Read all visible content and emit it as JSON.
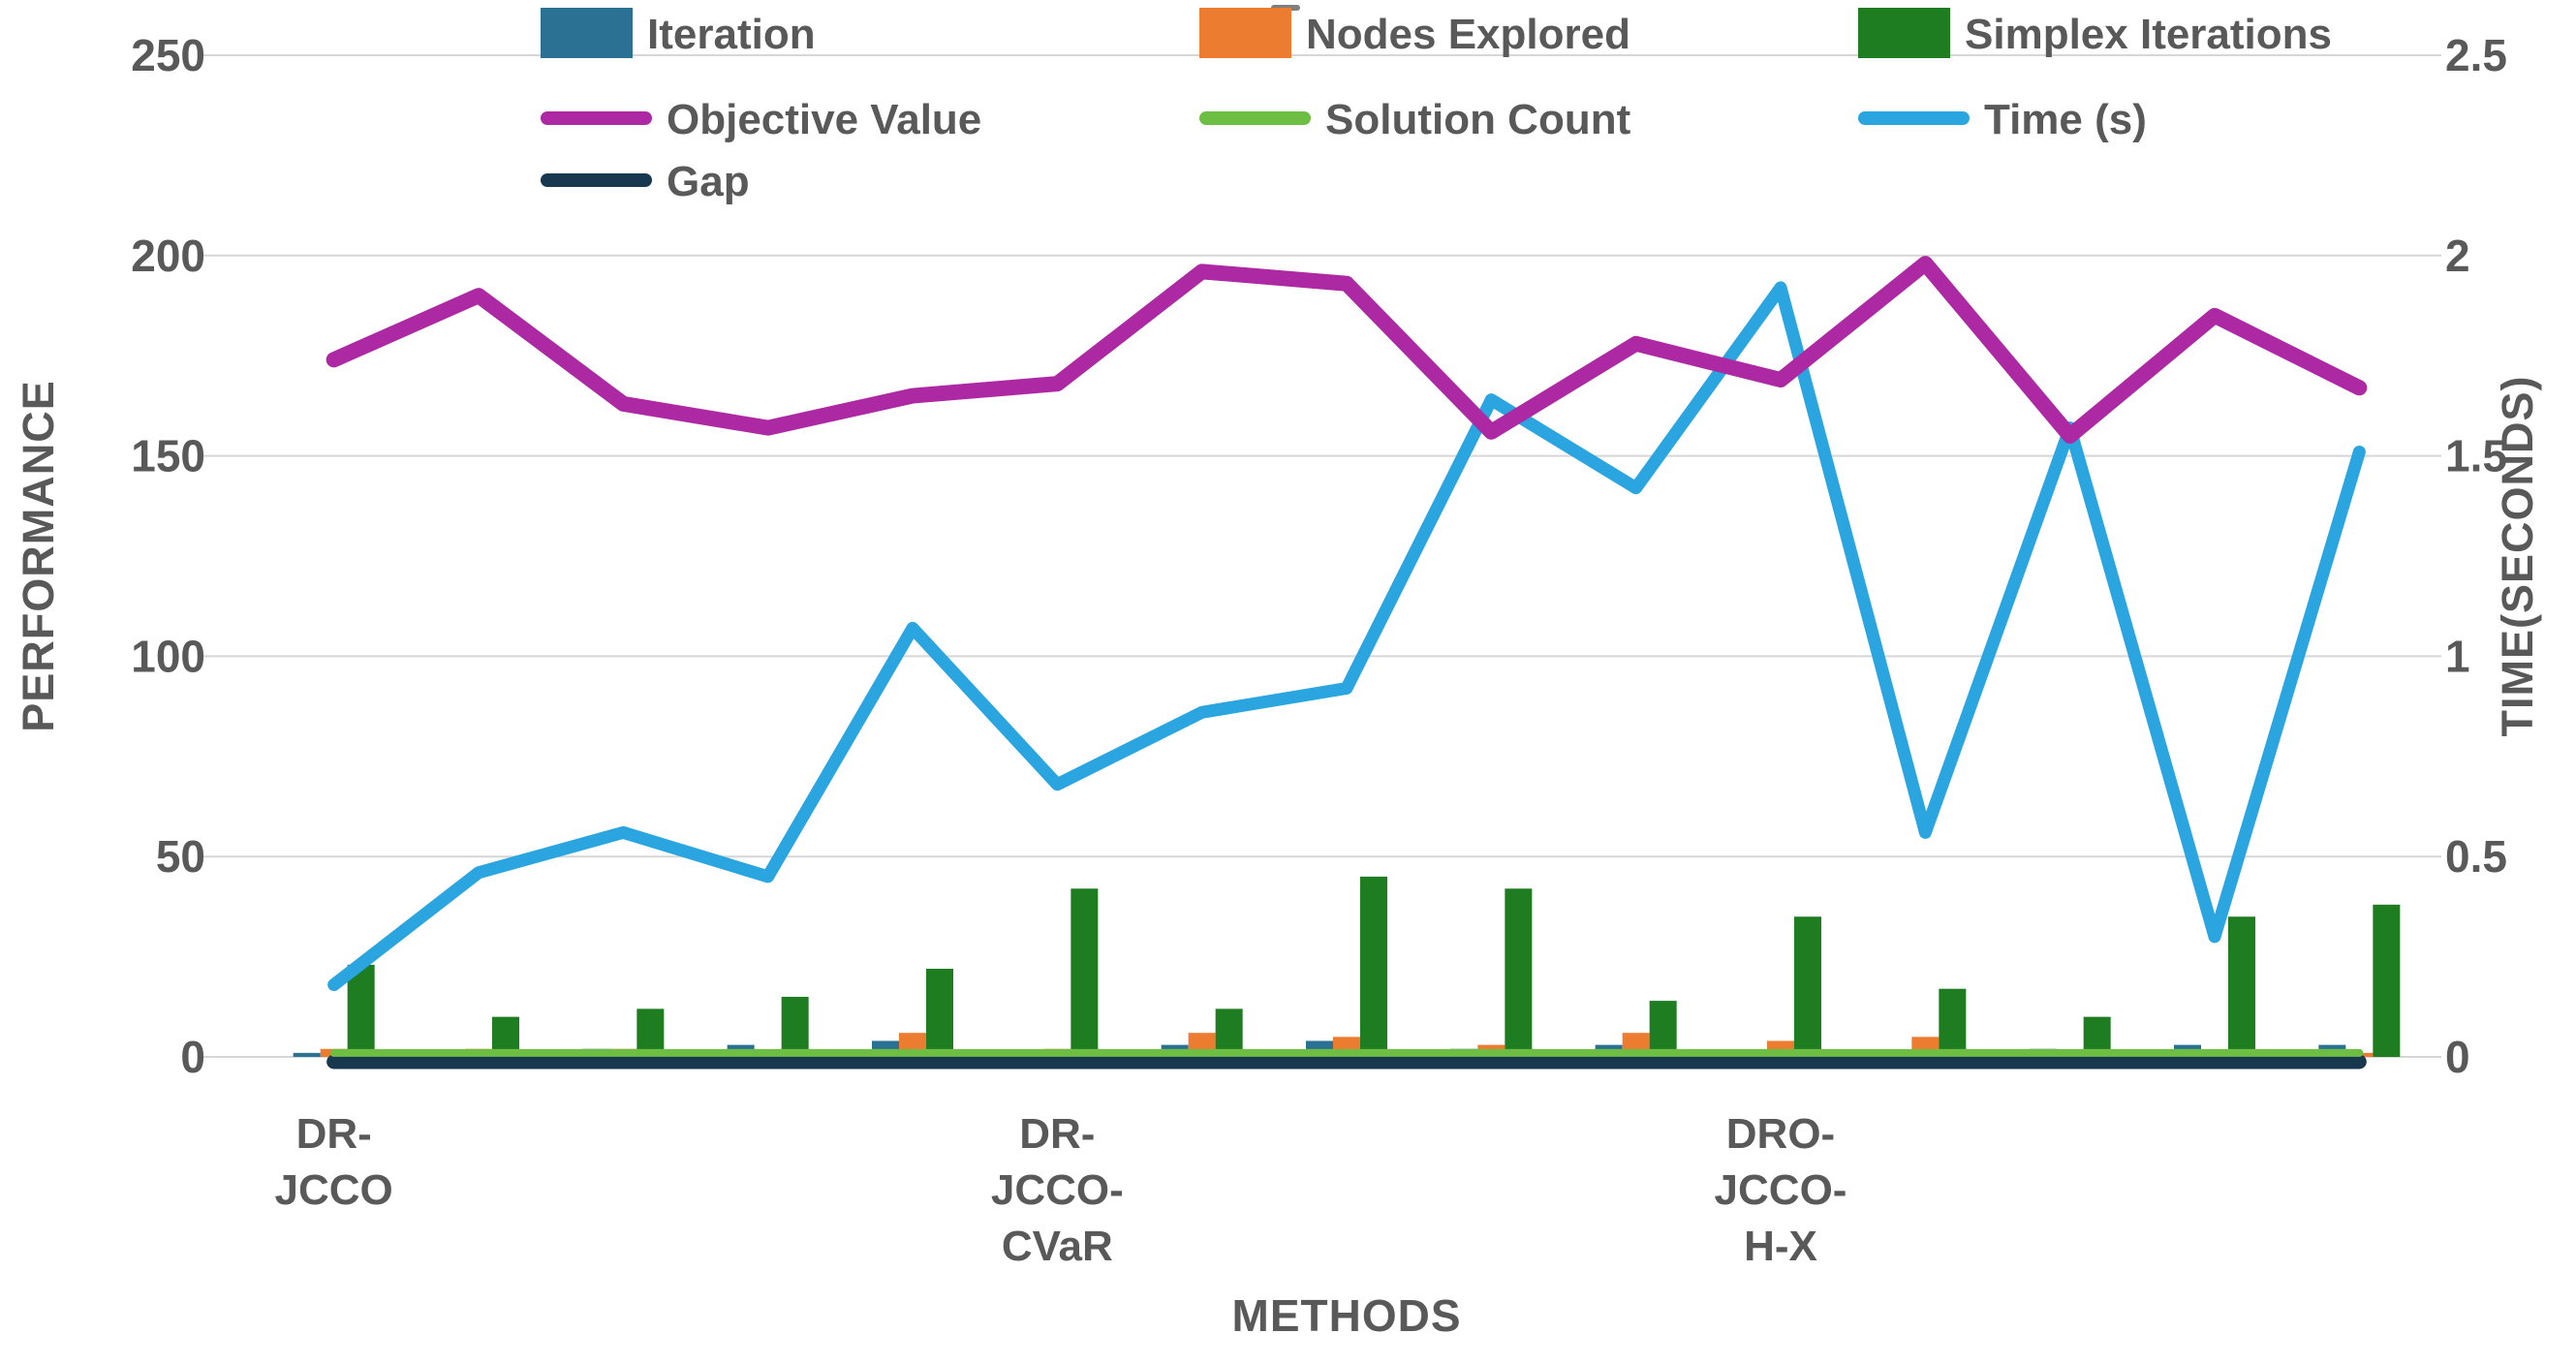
{
  "title_fragment": "-",
  "chart_data": {
    "type": "combo-bar-line",
    "grid": true,
    "legend_position": "top",
    "x_axis": {
      "title": "METHODS"
    },
    "left_axis": {
      "title": "PERFORMANCE",
      "min": 0,
      "max": 250,
      "tick_labels": [
        "250",
        "200",
        "150",
        "100",
        "50",
        "0"
      ],
      "tick_values": [
        250,
        200,
        150,
        100,
        50,
        0
      ]
    },
    "right_axis": {
      "title": "TIME(SECONDS)",
      "min": 0,
      "max": 2.5,
      "tick_labels": [
        "2.5",
        "2",
        "1.5",
        "1",
        "0.5",
        "0"
      ],
      "tick_values": [
        2.5,
        2,
        1.5,
        1,
        0.5,
        0
      ]
    },
    "categories": [
      "DR-JCCO",
      "",
      "",
      "",
      "",
      "DR-JCCO-CVaR",
      "",
      "",
      "",
      "",
      "DRO-JCCO-H-X",
      "",
      "",
      "",
      ""
    ],
    "category_labels": [
      {
        "index": 0,
        "lines": [
          "DR-",
          "JCCO"
        ]
      },
      {
        "index": 5,
        "lines": [
          "DR-",
          "JCCO-",
          "CVaR"
        ]
      },
      {
        "index": 10,
        "lines": [
          "DRO-",
          "JCCO-",
          "H-X"
        ]
      }
    ],
    "series": [
      {
        "name": "Iteration",
        "type": "bar",
        "axis": "left",
        "color": "#2B7194",
        "values": [
          1,
          1,
          2,
          3,
          4,
          1,
          3,
          4,
          2,
          3,
          0,
          0,
          2,
          3,
          3
        ]
      },
      {
        "name": "Nodes Explored",
        "type": "bar",
        "axis": "left",
        "color": "#EC7C30",
        "values": [
          2,
          2,
          2,
          1,
          6,
          2,
          6,
          5,
          3,
          6,
          4,
          5,
          0,
          0,
          1
        ]
      },
      {
        "name": "Simplex Iterations",
        "type": "bar",
        "axis": "left",
        "color": "#1F7D21",
        "values": [
          23,
          10,
          12,
          15,
          22,
          42,
          12,
          45,
          42,
          14,
          35,
          17,
          10,
          35,
          38
        ]
      },
      {
        "name": "Objective Value",
        "type": "line",
        "axis": "left",
        "color": "#AC29A3",
        "stroke_width": 16,
        "values": [
          174,
          190,
          163,
          157,
          165,
          168,
          196,
          193,
          156,
          178,
          169,
          198,
          155,
          185,
          167
        ]
      },
      {
        "name": "Solution Count",
        "type": "line",
        "axis": "left",
        "color": "#6FBE44",
        "stroke_width": 8,
        "values": [
          1,
          1,
          1,
          1,
          1,
          1,
          1,
          1,
          1,
          1,
          1,
          1,
          1,
          1,
          1
        ]
      },
      {
        "name": "Time (s)",
        "type": "line",
        "axis": "right",
        "color": "#2AA5E0",
        "stroke_width": 13,
        "values": [
          0.18,
          0.46,
          0.56,
          0.45,
          1.07,
          0.68,
          0.86,
          0.92,
          1.64,
          1.42,
          1.92,
          0.56,
          1.57,
          0.3,
          1.51
        ]
      },
      {
        "name": "Gap",
        "type": "line",
        "axis": "left",
        "color": "#17384E",
        "stroke_width": 15,
        "values": [
          0,
          0,
          0,
          0,
          0,
          0,
          0,
          0,
          0,
          0,
          0,
          0,
          0,
          0,
          0
        ]
      }
    ],
    "colors": {
      "text": "#595959",
      "gridline": "#D6D6D6",
      "title_dash": "#7F7F7F",
      "background": "#FFFFFF"
    }
  }
}
